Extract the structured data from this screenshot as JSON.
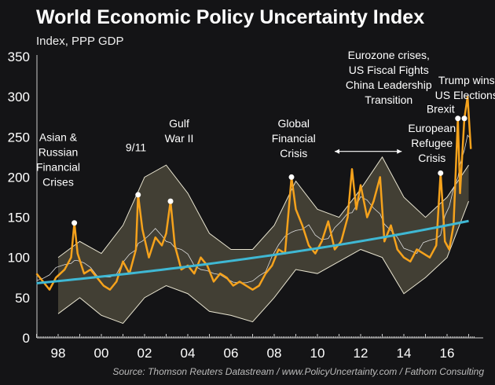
{
  "chart_data": {
    "type": "line",
    "title": "World Economic Policy Uncertainty Index",
    "subtitle": "Index, PPP GDP",
    "source": "Source: Thomson Reuters Datastream / www.PolicyUncertainty.com / Fathom Consulting",
    "ylim": [
      0,
      350
    ],
    "yticks": [
      0,
      50,
      100,
      150,
      200,
      250,
      300,
      350
    ],
    "xlim": [
      1997,
      2017.3
    ],
    "xticks": [
      {
        "v": 1998,
        "label": "98"
      },
      {
        "v": 2000,
        "label": "00"
      },
      {
        "v": 2002,
        "label": "02"
      },
      {
        "v": 2004,
        "label": "04"
      },
      {
        "v": 2006,
        "label": "06"
      },
      {
        "v": 2008,
        "label": "08"
      },
      {
        "v": 2010,
        "label": "10"
      },
      {
        "v": 2012,
        "label": "12"
      },
      {
        "v": 2014,
        "label": "14"
      },
      {
        "v": 2016,
        "label": "16"
      }
    ],
    "colors": {
      "index": "#f5a21c",
      "trend": "#3fb8d4",
      "band": "#4a473a",
      "band_edge": "#e8e4d0"
    },
    "index": {
      "x": [
        1997.0,
        1997.3,
        1997.6,
        1997.9,
        1998.3,
        1998.6,
        1998.75,
        1998.9,
        1999.2,
        1999.5,
        1999.8,
        2000.1,
        2000.4,
        2000.7,
        2001.0,
        2001.3,
        2001.6,
        2001.7,
        2001.9,
        2002.2,
        2002.5,
        2002.8,
        2003.0,
        2003.2,
        2003.4,
        2003.7,
        2004.0,
        2004.3,
        2004.6,
        2004.9,
        2005.2,
        2005.5,
        2005.8,
        2006.1,
        2006.4,
        2006.7,
        2007.0,
        2007.3,
        2007.6,
        2007.9,
        2008.2,
        2008.5,
        2008.8,
        2009.0,
        2009.3,
        2009.6,
        2009.9,
        2010.2,
        2010.5,
        2010.8,
        2011.1,
        2011.4,
        2011.6,
        2011.8,
        2012.0,
        2012.3,
        2012.6,
        2012.9,
        2013.1,
        2013.4,
        2013.7,
        2014.0,
        2014.3,
        2014.6,
        2014.9,
        2015.2,
        2015.5,
        2015.7,
        2015.9,
        2016.1,
        2016.3,
        2016.5,
        2016.6,
        2016.8,
        2016.95,
        2017.1
      ],
      "y": [
        80,
        70,
        60,
        75,
        85,
        100,
        143,
        105,
        80,
        85,
        75,
        65,
        60,
        70,
        95,
        80,
        110,
        178,
        135,
        100,
        125,
        115,
        130,
        170,
        115,
        85,
        90,
        80,
        100,
        90,
        70,
        80,
        75,
        65,
        70,
        65,
        60,
        65,
        80,
        90,
        110,
        105,
        200,
        160,
        140,
        115,
        105,
        120,
        145,
        110,
        120,
        150,
        210,
        160,
        190,
        150,
        170,
        200,
        120,
        140,
        110,
        100,
        95,
        110,
        105,
        100,
        115,
        205,
        120,
        110,
        140,
        273,
        180,
        273,
        300,
        235
      ]
    },
    "band": {
      "x": [
        1998,
        1999,
        2000,
        2001,
        2002,
        2003,
        2004,
        2005,
        2006,
        2007,
        2008,
        2009,
        2010,
        2011,
        2012,
        2013,
        2014,
        2015,
        2016,
        2017
      ],
      "upper": [
        100,
        120,
        105,
        140,
        200,
        215,
        180,
        130,
        110,
        110,
        140,
        195,
        160,
        150,
        185,
        225,
        175,
        150,
        175,
        215
      ],
      "lower": [
        30,
        50,
        28,
        18,
        50,
        65,
        55,
        33,
        28,
        20,
        50,
        85,
        80,
        95,
        110,
        100,
        55,
        75,
        100,
        170
      ]
    },
    "trend": {
      "start": [
        1997,
        68
      ],
      "end": [
        2017.1,
        146
      ]
    },
    "annotations": [
      {
        "x": 1998.75,
        "y": 143,
        "lines": [
          "Asian &",
          "Russian",
          "Financial",
          "Crises"
        ],
        "tx": 1998.0,
        "ty": 245
      },
      {
        "x": 2001.7,
        "y": 178,
        "lines": [
          "9/11"
        ],
        "tx": 2001.6,
        "ty": 232
      },
      {
        "x": 2003.2,
        "y": 170,
        "lines": [
          "Gulf",
          "War II"
        ],
        "tx": 2003.6,
        "ty": 262
      },
      {
        "x": 2008.8,
        "y": 200,
        "lines": [
          "Global",
          "Financial",
          "Crisis"
        ],
        "tx": 2008.9,
        "ty": 262
      },
      {
        "x": 2015.7,
        "y": 205,
        "lines": [
          "European",
          "Refugee",
          "Crisis"
        ],
        "tx": 2015.3,
        "ty": 256
      },
      {
        "x": 2016.5,
        "y": 273,
        "lines": [
          "Brexit"
        ],
        "tx": 2015.7,
        "ty": 280
      },
      {
        "x": 2016.8,
        "y": 273,
        "lines": [
          "Trump wins",
          "US Elections"
        ],
        "tx": 2016.9,
        "ty": 316
      },
      {
        "lines": [
          "Eurozone crises,",
          "US Fiscal Fights",
          "China Leadership",
          "Transition"
        ],
        "tx": 2013.3,
        "ty": 347,
        "arrow": [
          2010.8,
          2013.9,
          232
        ]
      }
    ]
  }
}
